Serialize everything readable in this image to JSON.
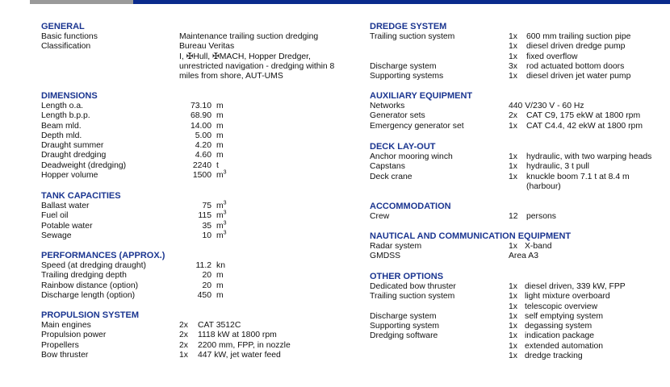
{
  "colors": {
    "heading": "#1a3590",
    "top_bar_blue": "#0a2a8c",
    "top_bar_gray": "#9a9a9a"
  },
  "left_sections": [
    {
      "title": "GENERAL",
      "rows": [
        {
          "type": "text",
          "label": "Basic functions",
          "value": "Maintenance trailing suction dredging"
        },
        {
          "type": "text",
          "label": "Classification",
          "value": "Bureau Veritas"
        },
        {
          "type": "text",
          "label": "",
          "value": "I, ✠Hull, ✠MACH, Hopper Dredger,"
        },
        {
          "type": "text",
          "label": "",
          "value": "unrestricted navigation - dredging within 8"
        },
        {
          "type": "text",
          "label": "",
          "value": "miles from shore, AUT-UMS"
        }
      ]
    },
    {
      "title": "DIMENSIONS",
      "rows": [
        {
          "type": "num",
          "label": "Length o.a.",
          "value": "73.10",
          "unit": "m"
        },
        {
          "type": "num",
          "label": "Length b.p.p.",
          "value": "68.90",
          "unit": "m"
        },
        {
          "type": "num",
          "label": "Beam mld.",
          "value": "14.00",
          "unit": "m"
        },
        {
          "type": "num",
          "label": "Depth mld.",
          "value": "5.00",
          "unit": "m"
        },
        {
          "type": "num",
          "label": "Draught summer",
          "value": "4.20",
          "unit": "m"
        },
        {
          "type": "num",
          "label": "Draught dredging",
          "value": "4.60",
          "unit": "m"
        },
        {
          "type": "num",
          "label": "Deadweight (dredging)",
          "value": "2240",
          "unit": "t"
        },
        {
          "type": "num",
          "label": "Hopper volume",
          "value": "1500",
          "unit": "m³"
        }
      ]
    },
    {
      "title": "TANK CAPACITIES",
      "rows": [
        {
          "type": "num",
          "label": "Ballast water",
          "value": "75",
          "unit": "m³"
        },
        {
          "type": "num",
          "label": "Fuel oil",
          "value": "115",
          "unit": "m³"
        },
        {
          "type": "num",
          "label": "Potable water",
          "value": "35",
          "unit": "m³"
        },
        {
          "type": "num",
          "label": "Sewage",
          "value": "10",
          "unit": "m³"
        }
      ]
    },
    {
      "title": "PERFORMANCES (APPROX.)",
      "rows": [
        {
          "type": "num",
          "label": "Speed (at dredging draught)",
          "value": "11.2",
          "unit": "kn"
        },
        {
          "type": "num",
          "label": "Trailing dredging depth",
          "value": "20",
          "unit": "m"
        },
        {
          "type": "num",
          "label": "Rainbow distance (option)",
          "value": "20",
          "unit": "m"
        },
        {
          "type": "num",
          "label": "Discharge length (option)",
          "value": "450",
          "unit": "m"
        }
      ]
    },
    {
      "title": "PROPULSION SYSTEM",
      "rows": [
        {
          "type": "qty",
          "label": "Main engines",
          "qty": "2x",
          "desc": "CAT 3512C"
        },
        {
          "type": "qty",
          "label": "Propulsion power",
          "qty": "2x",
          "desc": "1118 kW at 1800 rpm"
        },
        {
          "type": "qty",
          "label": "Propellers",
          "qty": "2x",
          "desc": "2200 mm, FPP, in nozzle"
        },
        {
          "type": "qty",
          "label": "Bow thruster",
          "qty": "1x",
          "desc": "447 kW, jet water feed"
        }
      ]
    }
  ],
  "right_sections": [
    {
      "title": "DREDGE SYSTEM",
      "rows": [
        {
          "type": "qty",
          "label": "Trailing suction system",
          "qty": "1x",
          "desc": "600 mm trailing suction pipe"
        },
        {
          "type": "qty",
          "label": "",
          "qty": "1x",
          "desc": "diesel driven dredge pump"
        },
        {
          "type": "qty",
          "label": "",
          "qty": "1x",
          "desc": "fixed overflow"
        },
        {
          "type": "qty",
          "label": "Discharge system",
          "qty": "3x",
          "desc": "rod actuated bottom doors"
        },
        {
          "type": "qty",
          "label": "Supporting systems",
          "qty": "1x",
          "desc": "diesel driven jet water pump"
        }
      ]
    },
    {
      "title": "AUXILIARY EQUIPMENT",
      "rows": [
        {
          "type": "text",
          "label": "Networks",
          "value": "440 V/230 V - 60 Hz"
        },
        {
          "type": "qty",
          "label": "Generator sets",
          "qty": "2x",
          "desc": "CAT C9, 175 ekW at 1800 rpm"
        },
        {
          "type": "qty",
          "label": "Emergency generator set",
          "qty": "1x",
          "desc": "CAT C4.4, 42 ekW at 1800 rpm"
        }
      ]
    },
    {
      "title": "DECK LAY-OUT",
      "rows": [
        {
          "type": "qty",
          "label": "Anchor mooring winch",
          "qty": "1x",
          "desc": "hydraulic, with two warping heads"
        },
        {
          "type": "qty",
          "label": "Capstans",
          "qty": "1x",
          "desc": "hydraulic, 3 t pull"
        },
        {
          "type": "qty",
          "label": "Deck crane",
          "qty": "1x",
          "desc": "knuckle boom 7.1 t at 8.4 m"
        },
        {
          "type": "qty",
          "label": "",
          "qty": "",
          "desc": "(harbour)"
        }
      ]
    },
    {
      "title": "ACCOMMODATION",
      "rows": [
        {
          "type": "qty",
          "label": "Crew",
          "qty": "12",
          "desc": "persons"
        }
      ]
    },
    {
      "title": "NAUTICAL AND COMMUNICATION EQUIPMENT",
      "rows": [
        {
          "type": "qty2",
          "label": "Radar system",
          "qty": "1x",
          "desc": "X-band"
        },
        {
          "type": "text",
          "label": "GMDSS",
          "value": "Area A3"
        }
      ]
    },
    {
      "title": "OTHER OPTIONS",
      "rows": [
        {
          "type": "qty2",
          "label": "Dedicated bow thruster",
          "qty": "1x",
          "desc": "diesel driven, 339 kW, FPP"
        },
        {
          "type": "qty2",
          "label": "Trailing suction system",
          "qty": "1x",
          "desc": "light mixture overboard"
        },
        {
          "type": "qty2",
          "label": "",
          "qty": "1x",
          "desc": "telescopic overview"
        },
        {
          "type": "qty2",
          "label": "Discharge system",
          "qty": "1x",
          "desc": "self emptying system"
        },
        {
          "type": "qty2",
          "label": "Supporting system",
          "qty": "1x",
          "desc": "degassing system"
        },
        {
          "type": "qty2",
          "label": "Dredging software",
          "qty": "1x",
          "desc": "indication package"
        },
        {
          "type": "qty2",
          "label": "",
          "qty": "1x",
          "desc": "extended automation"
        },
        {
          "type": "qty2",
          "label": "",
          "qty": "1x",
          "desc": "dredge tracking"
        }
      ]
    }
  ]
}
